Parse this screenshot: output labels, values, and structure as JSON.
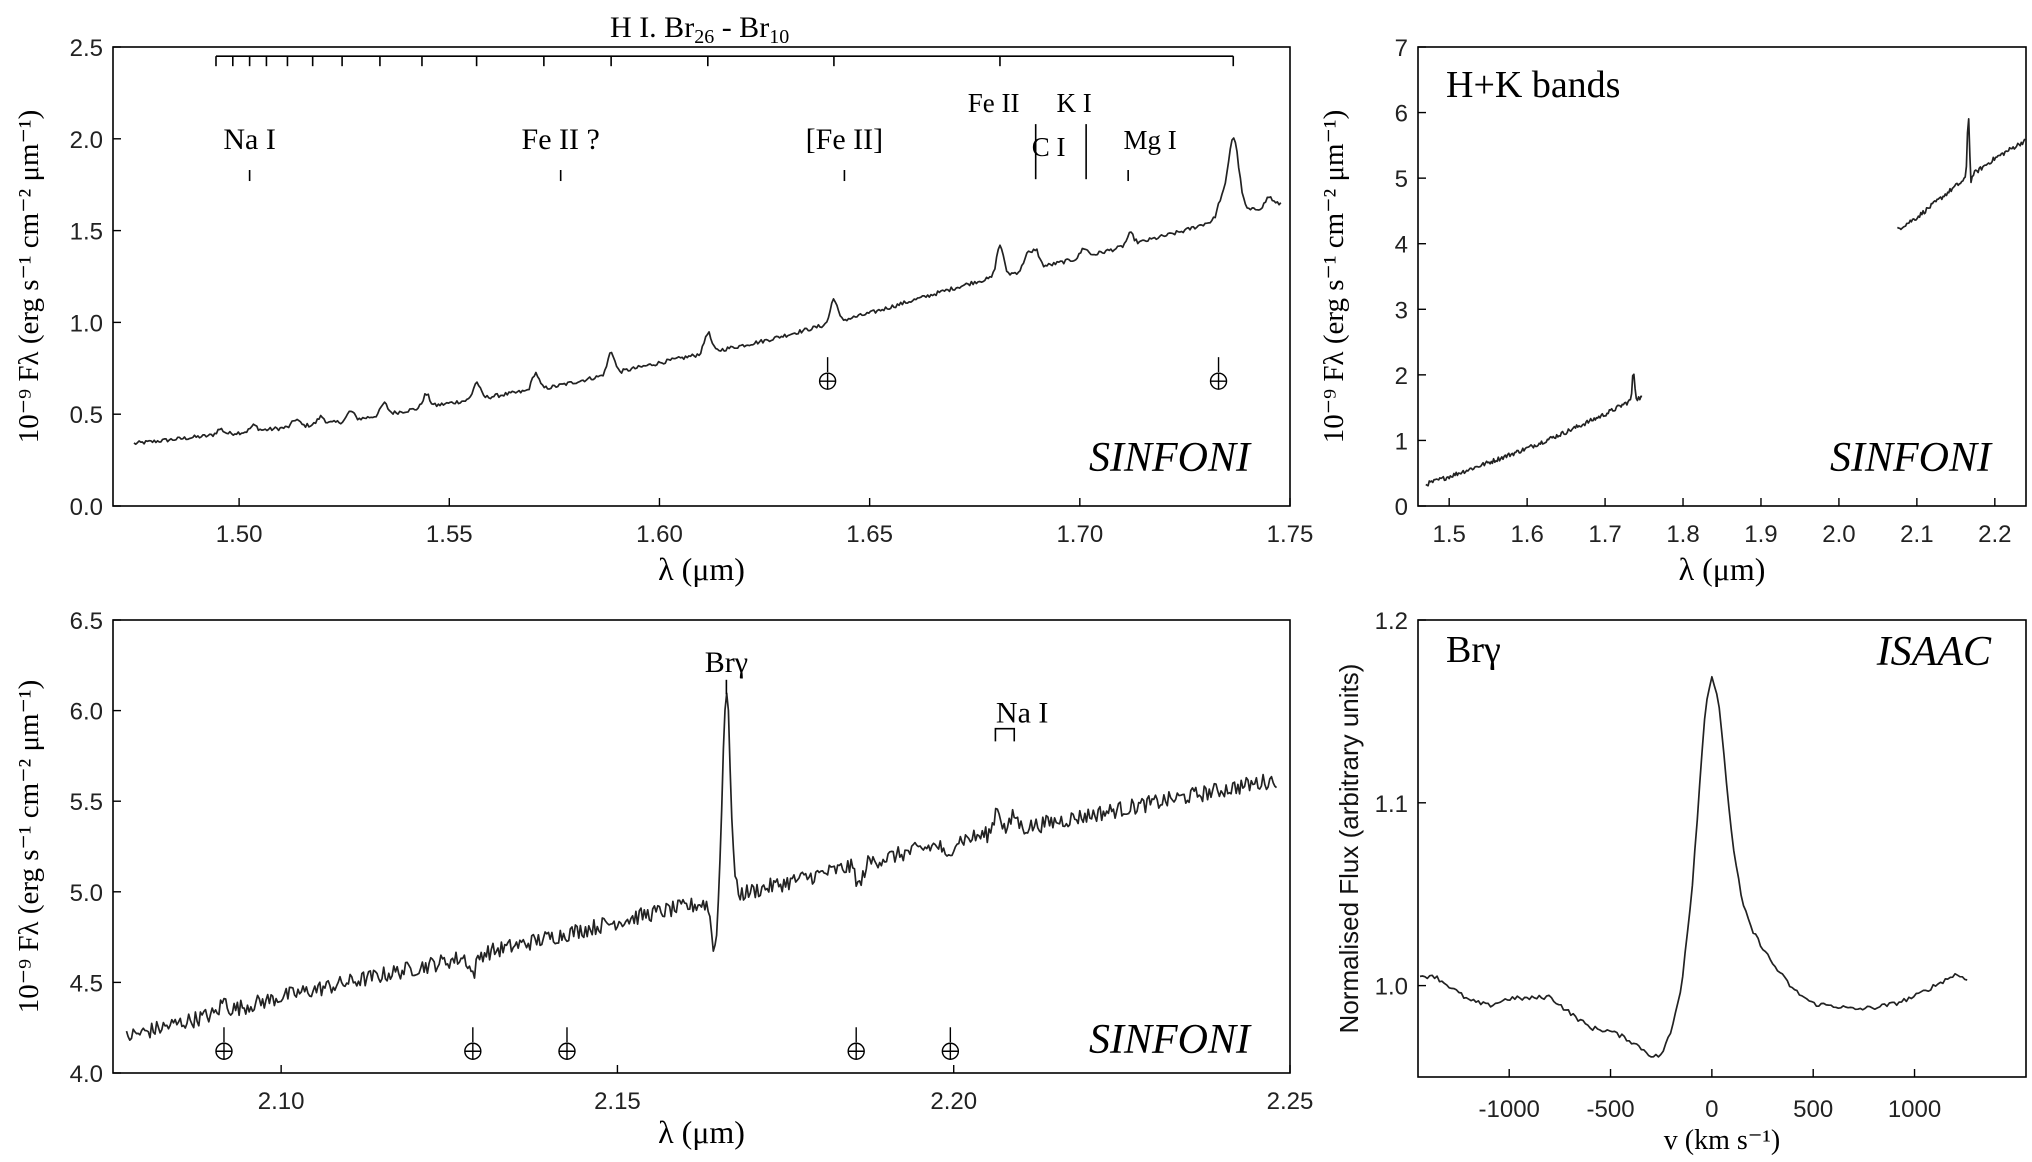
{
  "chart_data": [
    {
      "id": "hband",
      "type": "line",
      "instrument": "SINFONI",
      "xlabel": "λ (μm)",
      "ylabel": "10⁻⁹ Fλ (erg s⁻¹ cm⁻² μm⁻¹)",
      "xlim": [
        1.47,
        1.75
      ],
      "ylim": [
        0.0,
        2.5
      ],
      "xticks": [
        "1.50",
        "1.55",
        "1.60",
        "1.65",
        "1.70",
        "1.75"
      ],
      "yticks": [
        "0.0",
        "0.5",
        "1.0",
        "1.5",
        "2.0",
        "2.5"
      ],
      "series_label": "H I. Br26 - Br10",
      "continuum": [
        [
          1.475,
          0.34
        ],
        [
          1.5,
          0.4
        ],
        [
          1.525,
          0.46
        ],
        [
          1.55,
          0.56
        ],
        [
          1.575,
          0.65
        ],
        [
          1.6,
          0.78
        ],
        [
          1.625,
          0.9
        ],
        [
          1.65,
          1.05
        ],
        [
          1.675,
          1.22
        ],
        [
          1.7,
          1.35
        ],
        [
          1.725,
          1.5
        ],
        [
          1.735,
          1.58
        ],
        [
          1.748,
          1.65
        ]
      ],
      "lines": [
        [
          1.4955,
          0.03
        ],
        [
          1.5035,
          0.03
        ],
        [
          1.5135,
          0.04
        ],
        [
          1.5195,
          0.04
        ],
        [
          1.5265,
          0.05
        ],
        [
          1.5345,
          0.06
        ],
        [
          1.5445,
          0.07
        ],
        [
          1.5565,
          0.09
        ],
        [
          1.5705,
          0.09
        ],
        [
          1.5885,
          0.12
        ],
        [
          1.6115,
          0.11
        ],
        [
          1.6415,
          0.13
        ],
        [
          1.681,
          0.17
        ],
        [
          1.6875,
          0.09
        ],
        [
          1.6895,
          0.1
        ],
        [
          1.701,
          0.05
        ],
        [
          1.712,
          0.06
        ],
        [
          1.7335,
          0.08
        ],
        [
          1.7365,
          0.42
        ],
        [
          1.745,
          0.05
        ]
      ],
      "hi_series_ticks": [
        1.4945,
        1.4985,
        1.5025,
        1.5065,
        1.5115,
        1.5175,
        1.5245,
        1.5335,
        1.5435,
        1.5565,
        1.5725,
        1.5885,
        1.6115,
        1.6415,
        1.681,
        1.7365
      ],
      "hi_series_ymax": 2.45,
      "annotations": [
        {
          "text": "Na I",
          "x": 1.5025,
          "text_y": 2.0,
          "tick": [
            1.83,
            1.77
          ]
        },
        {
          "text": "Fe II ?",
          "x": 1.5765,
          "text_y": 2.0,
          "tick": [
            1.83,
            1.77
          ]
        },
        {
          "text": "[Fe II]",
          "x": 1.644,
          "text_y": 2.0,
          "tick": [
            1.83,
            1.77
          ]
        },
        {
          "text": "Fe II",
          "x": 1.6795,
          "text_y": 2.2,
          "tick": null
        },
        {
          "text": "C I",
          "x": 1.6895,
          "text_y": 1.96,
          "tick": [
            2.08,
            1.78
          ]
        },
        {
          "text": "K I",
          "x": 1.7015,
          "text_y": 2.2,
          "tick": [
            2.08,
            1.78
          ]
        },
        {
          "text": "Mg I",
          "x": 1.7115,
          "text_y": 2.0,
          "tick": [
            1.83,
            1.77
          ]
        }
      ],
      "telluric": [
        1.64,
        1.733
      ],
      "telluric_y": 0.68
    },
    {
      "id": "hk",
      "type": "line",
      "instrument": "SINFONI",
      "band_label": "H+K bands",
      "xlabel": "λ (μm)",
      "ylabel": "10⁻⁹ Fλ (erg s⁻¹ cm⁻² μm⁻¹)",
      "xlim": [
        1.46,
        2.24
      ],
      "ylim": [
        0,
        7
      ],
      "xticks": [
        "1.5",
        "1.6",
        "1.7",
        "1.8",
        "1.9",
        "2.0",
        "2.1",
        "2.2"
      ],
      "yticks": [
        "0",
        "1",
        "2",
        "3",
        "4",
        "5",
        "6",
        "7"
      ],
      "segment_h": [
        [
          1.47,
          0.33
        ],
        [
          1.5,
          0.45
        ],
        [
          1.55,
          0.66
        ],
        [
          1.6,
          0.88
        ],
        [
          1.65,
          1.13
        ],
        [
          1.7,
          1.4
        ],
        [
          1.735,
          1.62
        ],
        [
          1.748,
          1.66
        ]
      ],
      "segment_k": [
        [
          2.075,
          4.22
        ],
        [
          2.1,
          4.4
        ],
        [
          2.15,
          4.88
        ],
        [
          2.165,
          5.0
        ],
        [
          2.2,
          5.3
        ],
        [
          2.25,
          5.65
        ]
      ],
      "spikes": [
        [
          1.7365,
          0.42
        ],
        [
          2.1662,
          1.0
        ],
        [
          2.1685,
          -0.2
        ]
      ]
    },
    {
      "id": "kband",
      "type": "line",
      "instrument": "SINFONI",
      "xlabel": "λ (μm)",
      "ylabel": "10⁻⁹ Fλ (erg s⁻¹ cm⁻² μm⁻¹)",
      "xlim": [
        2.075,
        2.25
      ],
      "ylim": [
        4.0,
        6.5
      ],
      "xticks": [
        "2.10",
        "2.15",
        "2.20",
        "2.25"
      ],
      "yticks": [
        "4.0",
        "4.5",
        "5.0",
        "5.5",
        "6.0",
        "6.5"
      ],
      "continuum": [
        [
          2.077,
          4.2
        ],
        [
          2.1,
          4.42
        ],
        [
          2.13,
          4.66
        ],
        [
          2.155,
          4.88
        ],
        [
          2.162,
          4.93
        ],
        [
          2.2,
          5.28
        ],
        [
          2.248,
          5.62
        ]
      ],
      "lines": [
        [
          2.0915,
          0.06
        ],
        [
          2.1662,
          1.12
        ],
        [
          2.2065,
          0.14
        ],
        [
          2.209,
          0.08
        ]
      ],
      "dips": [
        [
          2.1645,
          -0.28
        ],
        [
          2.186,
          -0.12
        ],
        [
          2.199,
          -0.1
        ],
        [
          2.1285,
          -0.1
        ]
      ],
      "annotations": [
        {
          "text": "Brγ",
          "x": 2.1662,
          "text_y": 6.28,
          "tick": [
            6.17,
            6.09
          ],
          "kind": "tick"
        },
        {
          "text": "Na I",
          "x": 2.2075,
          "text_y": 6.0,
          "bracket": [
            2.2062,
            2.209
          ],
          "bracket_y": [
            5.9,
            5.83
          ],
          "kind": "bracket"
        }
      ],
      "telluric": [
        2.0915,
        2.1285,
        2.1425,
        2.1855,
        2.1995
      ],
      "telluric_y": 4.12
    },
    {
      "id": "isaac",
      "type": "line",
      "instrument": "ISAAC",
      "line_label": "Brγ",
      "xlabel": "v (km s⁻¹)",
      "ylabel": "Normalised Flux (arbitrary units)",
      "xlim": [
        -1450,
        1550
      ],
      "ylim": [
        0.95,
        1.2
      ],
      "xticks": [
        "-1000",
        "-500",
        "0",
        "500",
        "1000"
      ],
      "yticks": [
        "1.0",
        "1.1",
        "1.2"
      ],
      "profile": [
        [
          -1440,
          1.004
        ],
        [
          -1380,
          1.006
        ],
        [
          -1300,
          1.0
        ],
        [
          -1200,
          0.992
        ],
        [
          -1100,
          0.989
        ],
        [
          -1000,
          0.993
        ],
        [
          -900,
          0.993
        ],
        [
          -800,
          0.994
        ],
        [
          -700,
          0.985
        ],
        [
          -600,
          0.977
        ],
        [
          -500,
          0.975
        ],
        [
          -420,
          0.971
        ],
        [
          -350,
          0.966
        ],
        [
          -290,
          0.961
        ],
        [
          -250,
          0.962
        ],
        [
          -200,
          0.975
        ],
        [
          -150,
          1.0
        ],
        [
          -100,
          1.05
        ],
        [
          -60,
          1.11
        ],
        [
          -30,
          1.155
        ],
        [
          0,
          1.169
        ],
        [
          30,
          1.158
        ],
        [
          60,
          1.125
        ],
        [
          100,
          1.08
        ],
        [
          150,
          1.045
        ],
        [
          200,
          1.03
        ],
        [
          300,
          1.012
        ],
        [
          400,
          0.998
        ],
        [
          500,
          0.99
        ],
        [
          600,
          0.989
        ],
        [
          700,
          0.987
        ],
        [
          800,
          0.988
        ],
        [
          900,
          0.99
        ],
        [
          1000,
          0.994
        ],
        [
          1100,
          1.0
        ],
        [
          1200,
          1.006
        ],
        [
          1260,
          1.004
        ]
      ]
    }
  ],
  "labels": {
    "hband_series": "H I. Br",
    "hband_series_sub1": "26",
    "hband_series_mid": " - Br",
    "hband_series_sub2": "10",
    "kband_bry": "Brγ",
    "kband_nai": "Na I"
  }
}
